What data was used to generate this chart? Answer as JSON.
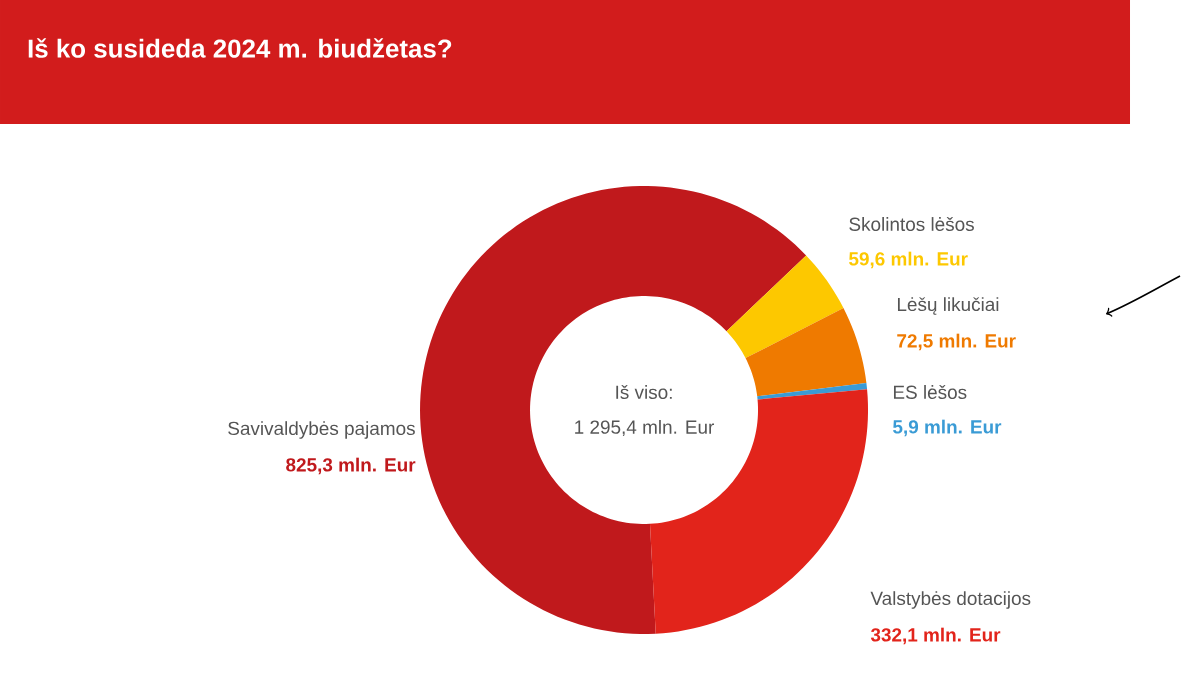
{
  "chart_data": {
    "type": "donut",
    "title": "Iš ko susideda 2024 m. biudžetas?",
    "categories": [
      "Savivaldybės pajamos",
      "Skolintos lėšos",
      "Lėšų likučiai",
      "ES lėšos",
      "Valstybės dotacijos"
    ],
    "values": [
      825.3,
      59.6,
      72.5,
      5.9,
      332.1
    ],
    "colors": [
      "#c0191c",
      "#fdc800",
      "#ef7a00",
      "#3a9bd5",
      "#e2241b"
    ],
    "value_labels": [
      "825,3 mln. Eur",
      "59,6 mln. Eur",
      "72,5 mln. Eur",
      "5,9 mln. Eur",
      "332,1 mln. Eur"
    ],
    "annotations": [
      "Iš viso:",
      "1 295,4 mln. Eur"
    ]
  }
}
